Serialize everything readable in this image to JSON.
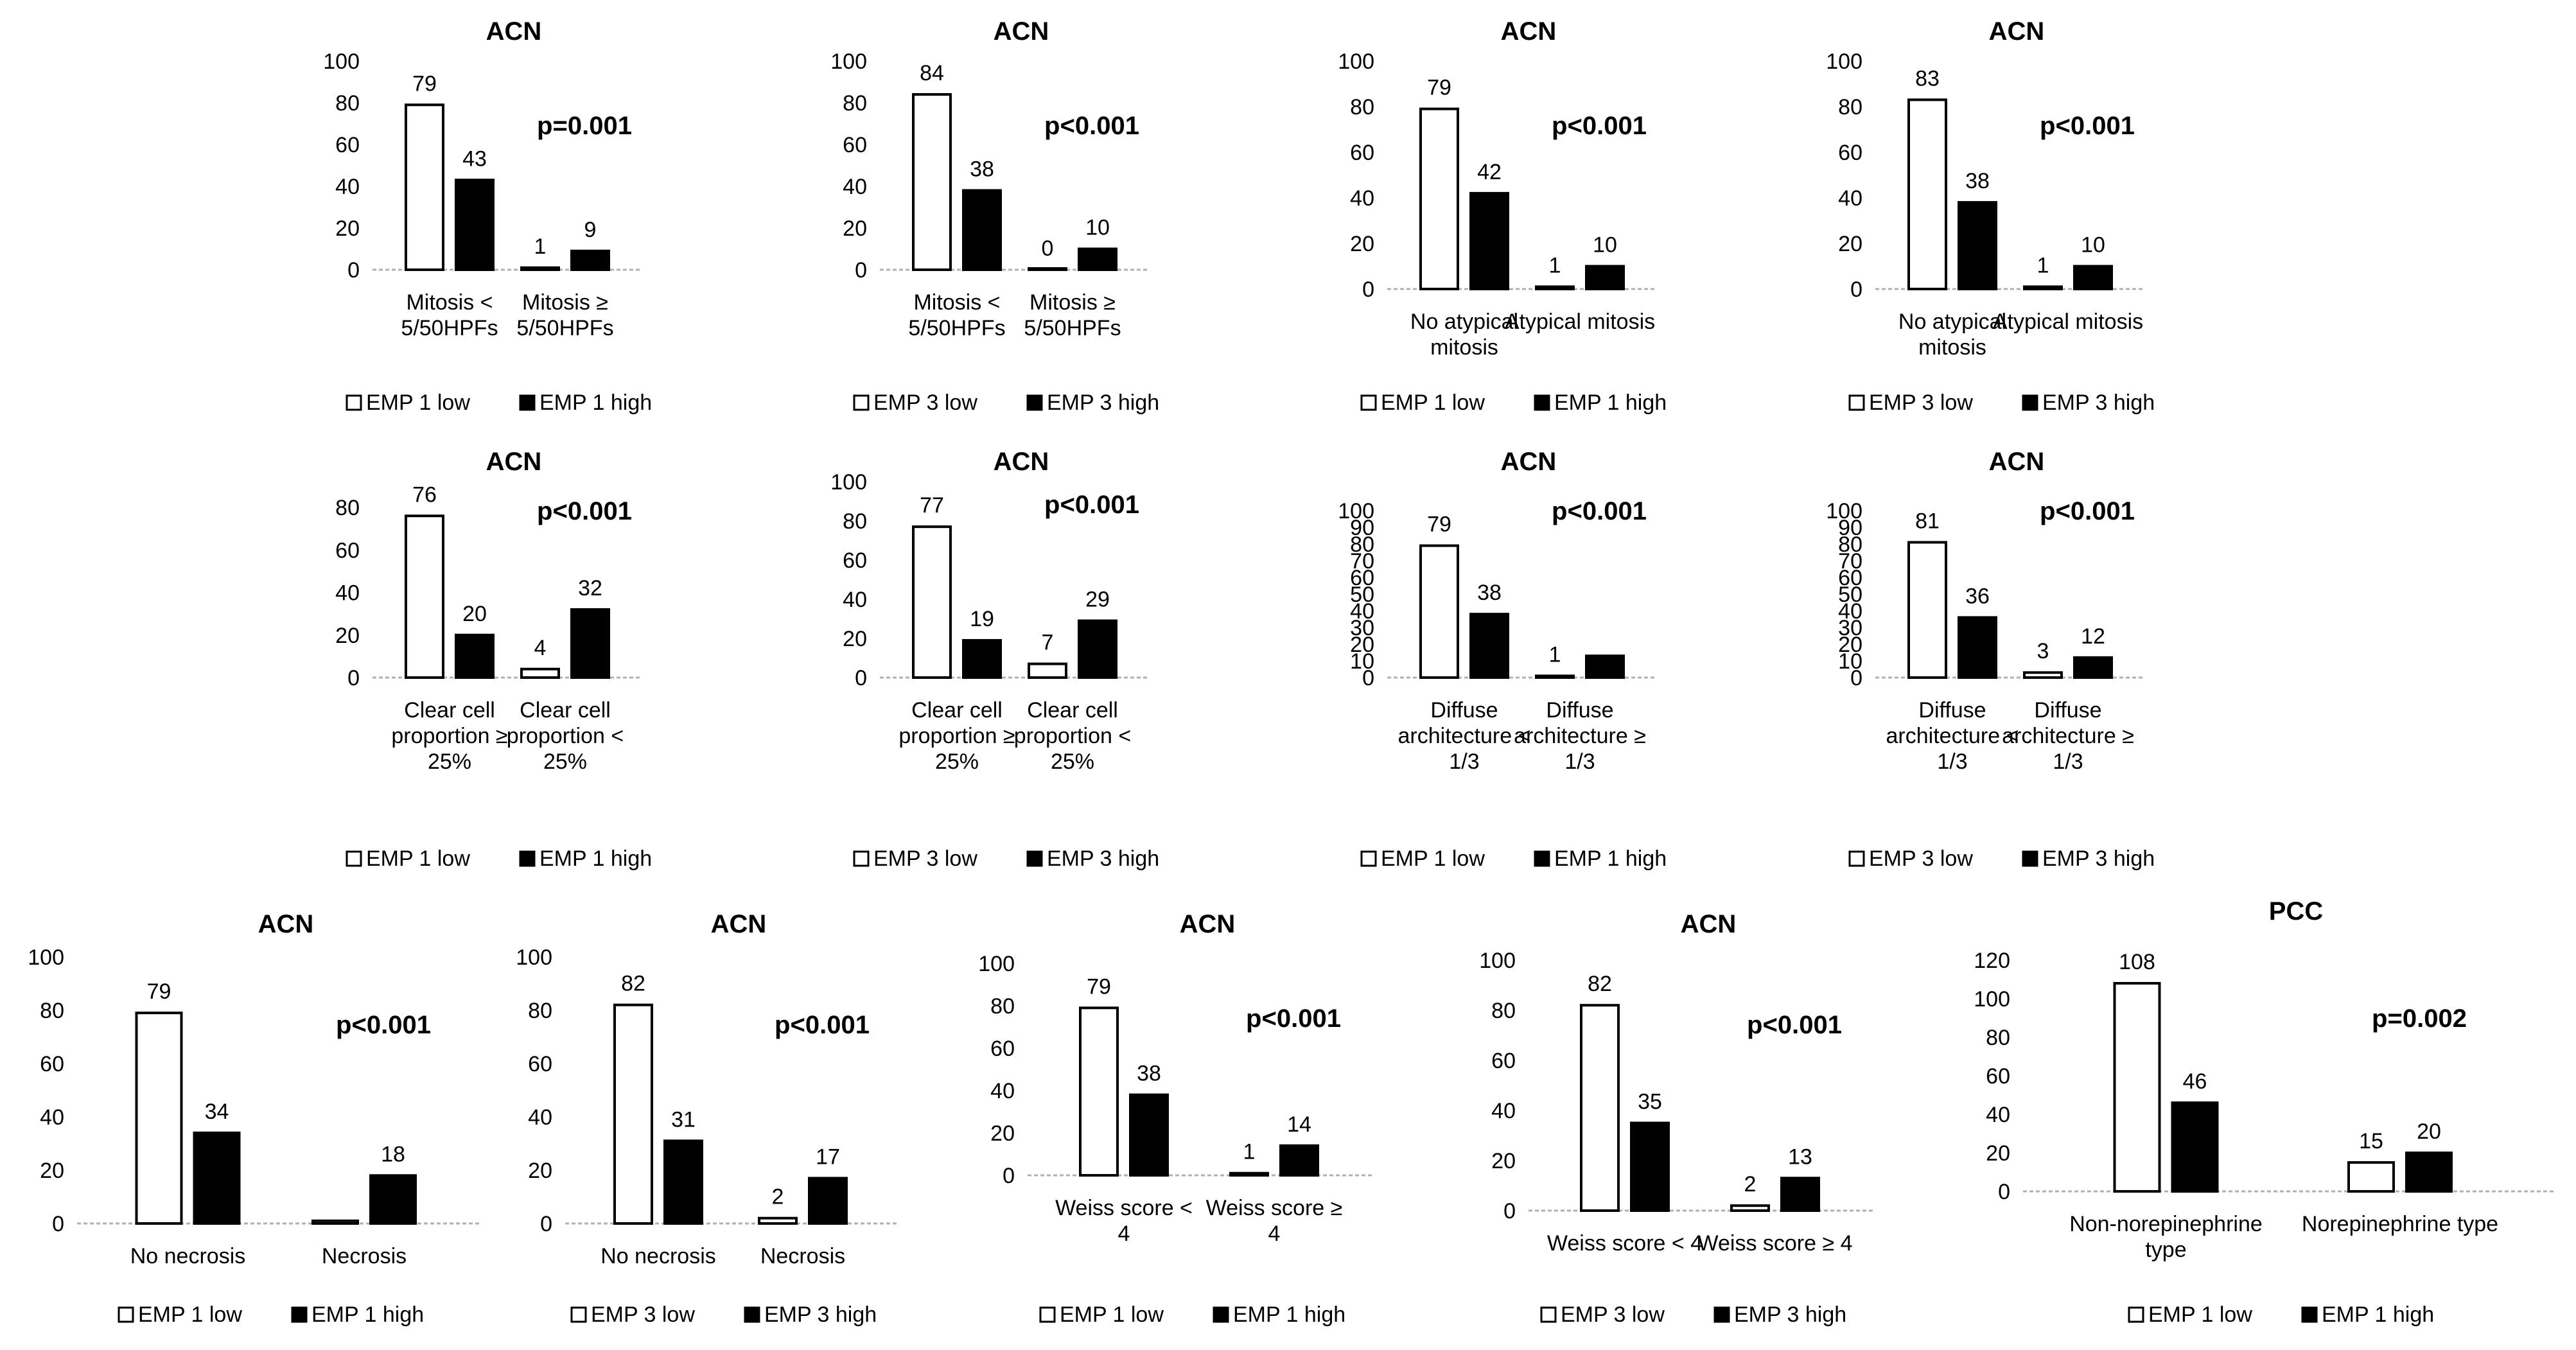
{
  "chart_data": [
    {
      "type": "bar",
      "title": "ACN",
      "p_value": "p=0.001",
      "ylim": [
        0,
        100
      ],
      "yticks": [
        0,
        20,
        40,
        60,
        80,
        100
      ],
      "categories": [
        [
          "Mitosis <",
          "5/50HPFs"
        ],
        [
          "Mitosis ≥",
          "5/50HPFs"
        ]
      ],
      "series": [
        {
          "name": "EMP 1 low",
          "color": "#ffffff",
          "values": [
            79,
            1
          ]
        },
        {
          "name": "EMP 1 high",
          "color": "#000000",
          "values": [
            43,
            9
          ]
        }
      ],
      "data_labels": [
        [
          "79",
          "43"
        ],
        [
          "1",
          "9"
        ]
      ]
    },
    {
      "type": "bar",
      "title": "ACN",
      "p_value": "p<0.001",
      "ylim": [
        0,
        100
      ],
      "yticks": [
        0,
        20,
        40,
        60,
        80,
        100
      ],
      "categories": [
        [
          "Mitosis <",
          "5/50HPFs"
        ],
        [
          "Mitosis ≥",
          "5/50HPFs"
        ]
      ],
      "series": [
        {
          "name": "EMP 3 low",
          "color": "#ffffff",
          "values": [
            84,
            0
          ]
        },
        {
          "name": "EMP 3 high",
          "color": "#000000",
          "values": [
            38,
            10
          ]
        }
      ],
      "data_labels": [
        [
          "84",
          "38"
        ],
        [
          "0",
          "10"
        ]
      ]
    },
    {
      "type": "bar",
      "title": "ACN",
      "p_value": "p<0.001",
      "ylim": [
        0,
        100
      ],
      "yticks": [
        0,
        20,
        40,
        60,
        80,
        100
      ],
      "categories": [
        [
          "No atypical",
          "mitosis"
        ],
        [
          "Atypical mitosis"
        ]
      ],
      "series": [
        {
          "name": "EMP 1 low",
          "color": "#ffffff",
          "values": [
            79,
            1
          ]
        },
        {
          "name": "EMP 1 high",
          "color": "#000000",
          "values": [
            42,
            10
          ]
        }
      ],
      "data_labels": [
        [
          "79",
          "42"
        ],
        [
          "1",
          "10"
        ]
      ]
    },
    {
      "type": "bar",
      "title": "ACN",
      "p_value": "p<0.001",
      "ylim": [
        0,
        100
      ],
      "yticks": [
        0,
        20,
        40,
        60,
        80,
        100
      ],
      "categories": [
        [
          "No atypical",
          "mitosis"
        ],
        [
          "Atypical mitosis"
        ]
      ],
      "series": [
        {
          "name": "EMP 3 low",
          "color": "#ffffff",
          "values": [
            83,
            1
          ]
        },
        {
          "name": "EMP 3 high",
          "color": "#000000",
          "values": [
            38,
            10
          ]
        }
      ],
      "data_labels": [
        [
          "83",
          "38"
        ],
        [
          "1",
          "10"
        ]
      ]
    },
    {
      "type": "bar",
      "title": "ACN",
      "p_value": "p<0.001",
      "ylim": [
        0,
        80
      ],
      "yticks": [
        0,
        20,
        40,
        60,
        80
      ],
      "categories": [
        [
          "Clear cell",
          "proportion ≥",
          "25%"
        ],
        [
          "Clear cell",
          "proportion <",
          "25%"
        ]
      ],
      "series": [
        {
          "name": "EMP 1 low",
          "color": "#ffffff",
          "values": [
            76,
            4
          ]
        },
        {
          "name": "EMP 1 high",
          "color": "#000000",
          "values": [
            20,
            32
          ]
        }
      ],
      "data_labels": [
        [
          "76",
          "20"
        ],
        [
          "4",
          "32"
        ]
      ]
    },
    {
      "type": "bar",
      "title": "ACN",
      "p_value": "p<0.001",
      "ylim": [
        0,
        100
      ],
      "yticks": [
        0,
        20,
        40,
        60,
        80,
        100
      ],
      "categories": [
        [
          "Clear cell",
          "proportion ≥",
          "25%"
        ],
        [
          "Clear cell",
          "proportion <",
          "25%"
        ]
      ],
      "series": [
        {
          "name": "EMP 3 low",
          "color": "#ffffff",
          "values": [
            77,
            7
          ]
        },
        {
          "name": "EMP 3 high",
          "color": "#000000",
          "values": [
            19,
            29
          ]
        }
      ],
      "data_labels": [
        [
          "77",
          "19"
        ],
        [
          "7",
          "29"
        ]
      ]
    },
    {
      "type": "bar",
      "title": "ACN",
      "p_value": "p<0.001",
      "ylim": [
        0,
        100
      ],
      "yticks": [
        0,
        10,
        20,
        30,
        40,
        50,
        60,
        70,
        80,
        90,
        100
      ],
      "categories": [
        [
          "Diffuse",
          "architecture <",
          "1/3"
        ],
        [
          "Diffuse",
          "architecture ≥",
          "1/3"
        ]
      ],
      "series": [
        {
          "name": "EMP 1 low",
          "color": "#ffffff",
          "values": [
            79,
            1
          ]
        },
        {
          "name": "EMP 1 high",
          "color": "#000000",
          "values": [
            38,
            13
          ]
        }
      ],
      "data_labels": [
        [
          "79",
          "38"
        ],
        [
          "1",
          ""
        ]
      ]
    },
    {
      "type": "bar",
      "title": "ACN",
      "p_value": "p<0.001",
      "ylim": [
        0,
        100
      ],
      "yticks": [
        0,
        10,
        20,
        30,
        40,
        50,
        60,
        70,
        80,
        90,
        100
      ],
      "categories": [
        [
          "Diffuse",
          "architecture <",
          "1/3"
        ],
        [
          "Diffuse",
          "architecture ≥",
          "1/3"
        ]
      ],
      "series": [
        {
          "name": "EMP 3 low",
          "color": "#ffffff",
          "values": [
            81,
            3
          ]
        },
        {
          "name": "EMP 3 high",
          "color": "#000000",
          "values": [
            36,
            12
          ]
        }
      ],
      "data_labels": [
        [
          "81",
          "36"
        ],
        [
          "3",
          "12"
        ]
      ]
    },
    {
      "type": "bar",
      "title": "ACN",
      "p_value": "p<0.001",
      "ylim": [
        0,
        100
      ],
      "yticks": [
        0,
        20,
        40,
        60,
        80,
        100
      ],
      "categories": [
        [
          "No necrosis"
        ],
        [
          "Necrosis"
        ]
      ],
      "series": [
        {
          "name": "EMP 1 low",
          "color": "#ffffff",
          "values": [
            79,
            1
          ]
        },
        {
          "name": "EMP 1 high",
          "color": "#000000",
          "values": [
            34,
            18
          ]
        }
      ],
      "data_labels": [
        [
          "79",
          "34"
        ],
        [
          "",
          "18"
        ]
      ]
    },
    {
      "type": "bar",
      "title": "ACN",
      "p_value": "p<0.001",
      "ylim": [
        0,
        100
      ],
      "yticks": [
        0,
        20,
        40,
        60,
        80,
        100
      ],
      "categories": [
        [
          "No necrosis"
        ],
        [
          "Necrosis"
        ]
      ],
      "series": [
        {
          "name": "EMP 3 low",
          "color": "#ffffff",
          "values": [
            82,
            2
          ]
        },
        {
          "name": "EMP 3 high",
          "color": "#000000",
          "values": [
            31,
            17
          ]
        }
      ],
      "data_labels": [
        [
          "82",
          "31"
        ],
        [
          "2",
          "17"
        ]
      ]
    },
    {
      "type": "bar",
      "title": "ACN",
      "p_value": "p<0.001",
      "ylim": [
        0,
        100
      ],
      "yticks": [
        0,
        20,
        40,
        60,
        80,
        100
      ],
      "categories": [
        [
          "Weiss score <",
          "4"
        ],
        [
          "Weiss score ≥",
          "4"
        ]
      ],
      "series": [
        {
          "name": "EMP 1 low",
          "color": "#ffffff",
          "values": [
            79,
            1
          ]
        },
        {
          "name": "EMP 1 high",
          "color": "#000000",
          "values": [
            38,
            14
          ]
        }
      ],
      "data_labels": [
        [
          "79",
          "38"
        ],
        [
          "1",
          "14"
        ]
      ]
    },
    {
      "type": "bar",
      "title": "ACN",
      "p_value": "p<0.001",
      "ylim": [
        0,
        100
      ],
      "yticks": [
        0,
        20,
        40,
        60,
        80,
        100
      ],
      "categories": [
        [
          "Weiss score < 4"
        ],
        [
          "Weiss score ≥ 4"
        ]
      ],
      "series": [
        {
          "name": "EMP 3 low",
          "color": "#ffffff",
          "values": [
            82,
            2
          ]
        },
        {
          "name": "EMP 3 high",
          "color": "#000000",
          "values": [
            35,
            13
          ]
        }
      ],
      "data_labels": [
        [
          "82",
          "35"
        ],
        [
          "2",
          "13"
        ]
      ]
    },
    {
      "type": "bar",
      "title": "PCC",
      "p_value": "p=0.002",
      "ylim": [
        0,
        120
      ],
      "yticks": [
        0,
        20,
        40,
        60,
        80,
        100,
        120
      ],
      "categories": [
        [
          "Non-norepinephrine",
          "type"
        ],
        [
          "Norepinephrine type"
        ]
      ],
      "series": [
        {
          "name": "EMP 1 low",
          "color": "#ffffff",
          "values": [
            108,
            15
          ]
        },
        {
          "name": "EMP 1 high",
          "color": "#000000",
          "values": [
            46,
            20
          ]
        }
      ],
      "data_labels": [
        [
          "108",
          "46"
        ],
        [
          "15",
          "20"
        ]
      ]
    }
  ]
}
